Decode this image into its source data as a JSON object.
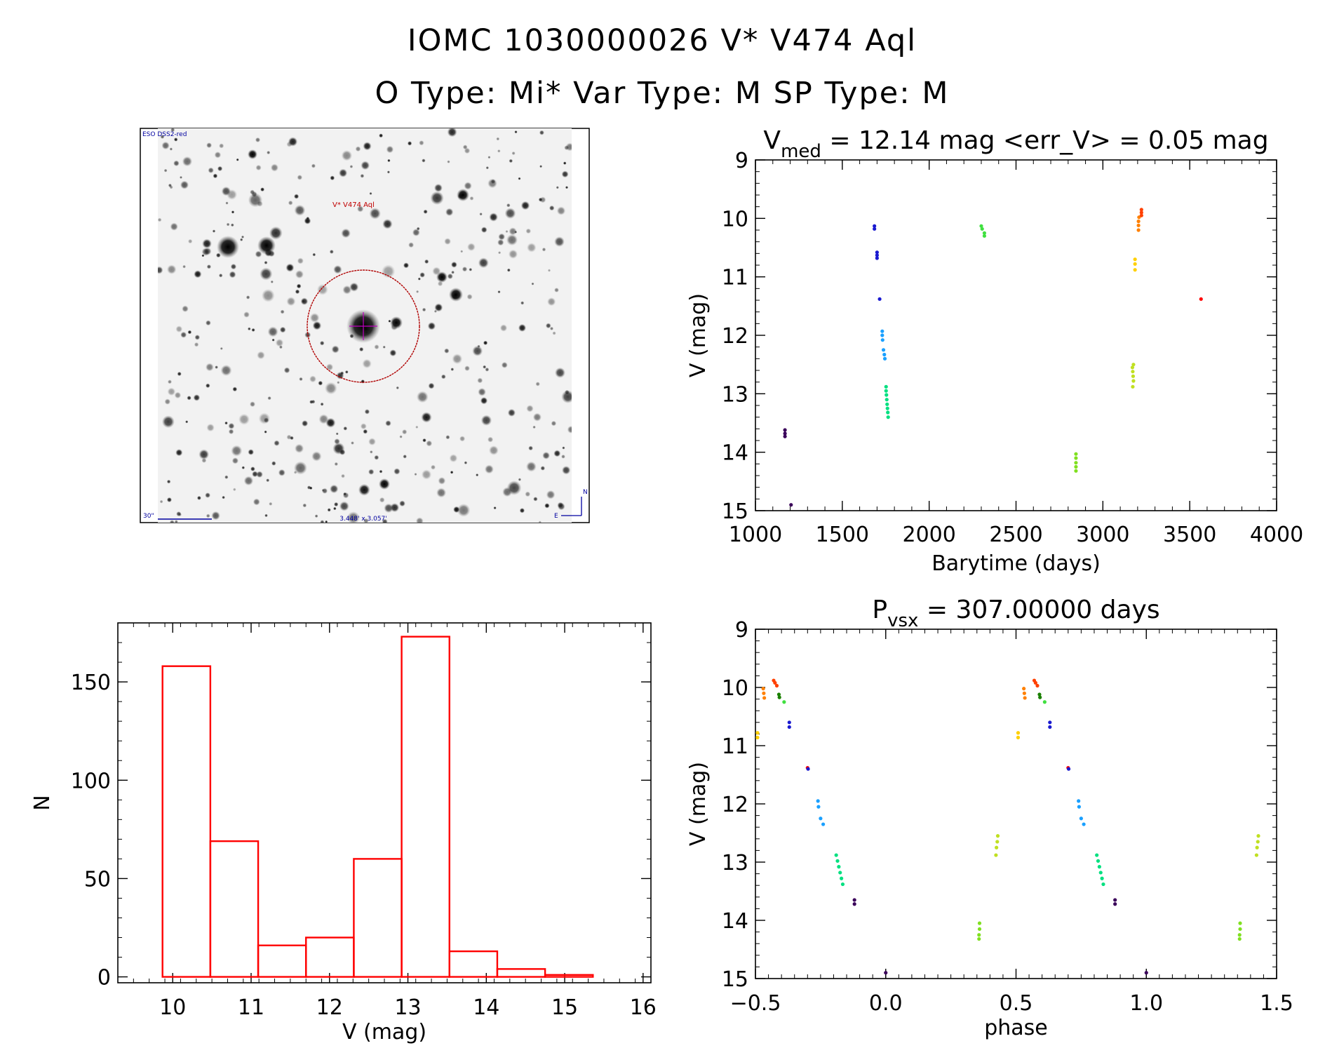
{
  "header": {
    "title": "IOMC 1030000026   V* V474 Aql",
    "subtitle": "O Type: Mi*  Var Type: M  SP Type: M"
  },
  "sky_image": {
    "source_label": "ESO DSS2-red",
    "target_label": "V* V474 Aql",
    "scale_label": "30\"",
    "fov_label": "3.448' x 3.057'",
    "north_label": "N",
    "east_label": "E"
  },
  "colors": {
    "hist_bar": "#ff0000",
    "axis": "#000000",
    "circle": "#b00000"
  },
  "chart_data": [
    {
      "id": "lightcurve",
      "type": "scatter",
      "title": "V_med = 12.14 mag <err_V> = 0.05 mag",
      "title_parts": {
        "prefix": "V",
        "sub": "med",
        "rest": " = 12.14 mag <err_V> = 0.05 mag"
      },
      "xlabel": "Barytime (days)",
      "ylabel": "V (mag)",
      "xlim": [
        1000,
        4000
      ],
      "ylim": [
        15,
        9
      ],
      "xticks": [
        "1000",
        "1500",
        "2000",
        "2500",
        "3000",
        "3500",
        "4000"
      ],
      "yticks": [
        "9",
        "10",
        "11",
        "12",
        "13",
        "14",
        "15"
      ],
      "points": [
        {
          "x": 1170,
          "y": 13.62,
          "c": "#3a005a"
        },
        {
          "x": 1170,
          "y": 13.68,
          "c": "#3a005a"
        },
        {
          "x": 1170,
          "y": 13.73,
          "c": "#3a005a"
        },
        {
          "x": 1205,
          "y": 14.9,
          "c": "#3a005a"
        },
        {
          "x": 1685,
          "y": 10.13,
          "c": "#1a1ad0"
        },
        {
          "x": 1685,
          "y": 10.18,
          "c": "#1a1ad0"
        },
        {
          "x": 1700,
          "y": 10.58,
          "c": "#1a1ad0"
        },
        {
          "x": 1700,
          "y": 10.63,
          "c": "#1a1ad0"
        },
        {
          "x": 1700,
          "y": 10.68,
          "c": "#1a1ad0"
        },
        {
          "x": 1715,
          "y": 11.38,
          "c": "#1a1ad0"
        },
        {
          "x": 1730,
          "y": 11.93,
          "c": "#1aa0ff"
        },
        {
          "x": 1730,
          "y": 12.0,
          "c": "#1aa0ff"
        },
        {
          "x": 1732,
          "y": 12.08,
          "c": "#1aa0ff"
        },
        {
          "x": 1737,
          "y": 12.25,
          "c": "#1aa0ff"
        },
        {
          "x": 1742,
          "y": 12.33,
          "c": "#1aa0ff"
        },
        {
          "x": 1745,
          "y": 12.4,
          "c": "#1aa0ff"
        },
        {
          "x": 1752,
          "y": 12.88,
          "c": "#00e080"
        },
        {
          "x": 1752,
          "y": 12.95,
          "c": "#00e080"
        },
        {
          "x": 1754,
          "y": 13.02,
          "c": "#00e080"
        },
        {
          "x": 1756,
          "y": 13.1,
          "c": "#00e080"
        },
        {
          "x": 1758,
          "y": 13.18,
          "c": "#00e080"
        },
        {
          "x": 1760,
          "y": 13.25,
          "c": "#00e080"
        },
        {
          "x": 1762,
          "y": 13.32,
          "c": "#00e080"
        },
        {
          "x": 1764,
          "y": 13.4,
          "c": "#00e080"
        },
        {
          "x": 2300,
          "y": 10.13,
          "c": "#40e040"
        },
        {
          "x": 2305,
          "y": 10.18,
          "c": "#40e040"
        },
        {
          "x": 2318,
          "y": 10.25,
          "c": "#40e040"
        },
        {
          "x": 2318,
          "y": 10.3,
          "c": "#40e040"
        },
        {
          "x": 2845,
          "y": 14.03,
          "c": "#80e020"
        },
        {
          "x": 2845,
          "y": 14.1,
          "c": "#80e020"
        },
        {
          "x": 2845,
          "y": 14.18,
          "c": "#80e020"
        },
        {
          "x": 2845,
          "y": 14.25,
          "c": "#80e020"
        },
        {
          "x": 2845,
          "y": 14.32,
          "c": "#80e020"
        },
        {
          "x": 3170,
          "y": 12.55,
          "c": "#c0e020"
        },
        {
          "x": 3172,
          "y": 12.62,
          "c": "#c0e020"
        },
        {
          "x": 3174,
          "y": 12.7,
          "c": "#c0e020"
        },
        {
          "x": 3176,
          "y": 12.78,
          "c": "#c0e020"
        },
        {
          "x": 3172,
          "y": 12.88,
          "c": "#c0e020"
        },
        {
          "x": 3176,
          "y": 12.5,
          "c": "#c0e020"
        },
        {
          "x": 3185,
          "y": 10.7,
          "c": "#ffd000"
        },
        {
          "x": 3185,
          "y": 10.78,
          "c": "#ffd000"
        },
        {
          "x": 3185,
          "y": 10.88,
          "c": "#ffd000"
        },
        {
          "x": 3205,
          "y": 10.05,
          "c": "#ff8000"
        },
        {
          "x": 3205,
          "y": 10.12,
          "c": "#ff8000"
        },
        {
          "x": 3205,
          "y": 10.2,
          "c": "#ff8000"
        },
        {
          "x": 3208,
          "y": 9.98,
          "c": "#ff8000"
        },
        {
          "x": 3222,
          "y": 9.85,
          "c": "#ff4000"
        },
        {
          "x": 3222,
          "y": 9.9,
          "c": "#ff4000"
        },
        {
          "x": 3222,
          "y": 9.95,
          "c": "#ff4000"
        },
        {
          "x": 3565,
          "y": 11.38,
          "c": "#ff0000"
        }
      ]
    },
    {
      "id": "histogram",
      "type": "bar",
      "title": "",
      "xlabel": "V (mag)",
      "ylabel": "N",
      "xlim": [
        9.3,
        16.1
      ],
      "ylim": [
        -3,
        180
      ],
      "xticks": [
        "10",
        "11",
        "12",
        "13",
        "14",
        "15",
        "16"
      ],
      "yticks": [
        "0",
        "50",
        "100",
        "150"
      ],
      "bin_edges": [
        9.87,
        10.48,
        11.09,
        11.7,
        12.31,
        12.92,
        13.53,
        14.14,
        14.75,
        15.36
      ],
      "values": [
        158,
        69,
        16,
        20,
        60,
        173,
        13,
        4,
        1
      ]
    },
    {
      "id": "phased",
      "type": "scatter",
      "title": "P_vsx = 307.00000 days",
      "title_parts": {
        "prefix": "P",
        "sub": "vsx",
        "rest": " = 307.00000 days"
      },
      "xlabel": "phase",
      "ylabel": "V (mag)",
      "xlim": [
        -0.5,
        1.5
      ],
      "ylim": [
        15,
        9
      ],
      "xticks": [
        "−0.5",
        "0.0",
        "0.5",
        "1.0",
        "1.5"
      ],
      "yticks": [
        "9",
        "10",
        "11",
        "12",
        "13",
        "14",
        "15"
      ],
      "points": [
        {
          "x": -0.492,
          "y": 10.78,
          "c": "#ffd000"
        },
        {
          "x": -0.492,
          "y": 10.86,
          "c": "#ffd000"
        },
        {
          "x": -0.47,
          "y": 10.02,
          "c": "#ff8000"
        },
        {
          "x": -0.468,
          "y": 10.1,
          "c": "#ff8000"
        },
        {
          "x": -0.466,
          "y": 10.18,
          "c": "#ff8000"
        },
        {
          "x": -0.43,
          "y": 9.88,
          "c": "#ff4000"
        },
        {
          "x": -0.425,
          "y": 9.92,
          "c": "#ff4000"
        },
        {
          "x": -0.418,
          "y": 9.97,
          "c": "#ff4000"
        },
        {
          "x": -0.41,
          "y": 10.12,
          "c": "#1a8000"
        },
        {
          "x": -0.408,
          "y": 10.17,
          "c": "#1a8000"
        },
        {
          "x": -0.39,
          "y": 10.25,
          "c": "#40e040"
        },
        {
          "x": -0.37,
          "y": 10.6,
          "c": "#1a1ad0"
        },
        {
          "x": -0.37,
          "y": 10.68,
          "c": "#1a1ad0"
        },
        {
          "x": -0.3,
          "y": 11.38,
          "c": "#ff0000"
        },
        {
          "x": -0.298,
          "y": 11.4,
          "c": "#1a1ad0"
        },
        {
          "x": -0.26,
          "y": 11.95,
          "c": "#1aa0ff"
        },
        {
          "x": -0.258,
          "y": 12.05,
          "c": "#1aa0ff"
        },
        {
          "x": -0.25,
          "y": 12.25,
          "c": "#1aa0ff"
        },
        {
          "x": -0.24,
          "y": 12.35,
          "c": "#1aa0ff"
        },
        {
          "x": -0.19,
          "y": 12.88,
          "c": "#00e080"
        },
        {
          "x": -0.185,
          "y": 12.98,
          "c": "#00e080"
        },
        {
          "x": -0.18,
          "y": 13.08,
          "c": "#00e080"
        },
        {
          "x": -0.175,
          "y": 13.18,
          "c": "#00e080"
        },
        {
          "x": -0.17,
          "y": 13.28,
          "c": "#00e080"
        },
        {
          "x": -0.165,
          "y": 13.38,
          "c": "#00e080"
        },
        {
          "x": -0.12,
          "y": 13.65,
          "c": "#3a005a"
        },
        {
          "x": -0.12,
          "y": 13.72,
          "c": "#3a005a"
        },
        {
          "x": 0.0,
          "y": 14.9,
          "c": "#3a005a"
        },
        {
          "x": 0.36,
          "y": 14.05,
          "c": "#80e020"
        },
        {
          "x": 0.36,
          "y": 14.15,
          "c": "#80e020"
        },
        {
          "x": 0.358,
          "y": 14.25,
          "c": "#80e020"
        },
        {
          "x": 0.358,
          "y": 14.32,
          "c": "#80e020"
        },
        {
          "x": 0.43,
          "y": 12.55,
          "c": "#c0e020"
        },
        {
          "x": 0.428,
          "y": 12.65,
          "c": "#c0e020"
        },
        {
          "x": 0.425,
          "y": 12.75,
          "c": "#c0e020"
        },
        {
          "x": 0.423,
          "y": 12.88,
          "c": "#c0e020"
        },
        {
          "x": 0.508,
          "y": 10.78,
          "c": "#ffd000"
        },
        {
          "x": 0.508,
          "y": 10.86,
          "c": "#ffd000"
        },
        {
          "x": 0.53,
          "y": 10.02,
          "c": "#ff8000"
        },
        {
          "x": 0.532,
          "y": 10.1,
          "c": "#ff8000"
        },
        {
          "x": 0.534,
          "y": 10.18,
          "c": "#ff8000"
        },
        {
          "x": 0.57,
          "y": 9.88,
          "c": "#ff4000"
        },
        {
          "x": 0.575,
          "y": 9.92,
          "c": "#ff4000"
        },
        {
          "x": 0.582,
          "y": 9.97,
          "c": "#ff4000"
        },
        {
          "x": 0.59,
          "y": 10.12,
          "c": "#1a8000"
        },
        {
          "x": 0.592,
          "y": 10.17,
          "c": "#1a8000"
        },
        {
          "x": 0.61,
          "y": 10.25,
          "c": "#40e040"
        },
        {
          "x": 0.63,
          "y": 10.6,
          "c": "#1a1ad0"
        },
        {
          "x": 0.63,
          "y": 10.68,
          "c": "#1a1ad0"
        },
        {
          "x": 0.7,
          "y": 11.38,
          "c": "#ff0000"
        },
        {
          "x": 0.702,
          "y": 11.4,
          "c": "#1a1ad0"
        },
        {
          "x": 0.74,
          "y": 11.95,
          "c": "#1aa0ff"
        },
        {
          "x": 0.742,
          "y": 12.05,
          "c": "#1aa0ff"
        },
        {
          "x": 0.75,
          "y": 12.25,
          "c": "#1aa0ff"
        },
        {
          "x": 0.76,
          "y": 12.35,
          "c": "#1aa0ff"
        },
        {
          "x": 0.81,
          "y": 12.88,
          "c": "#00e080"
        },
        {
          "x": 0.815,
          "y": 12.98,
          "c": "#00e080"
        },
        {
          "x": 0.82,
          "y": 13.08,
          "c": "#00e080"
        },
        {
          "x": 0.825,
          "y": 13.18,
          "c": "#00e080"
        },
        {
          "x": 0.83,
          "y": 13.28,
          "c": "#00e080"
        },
        {
          "x": 0.835,
          "y": 13.38,
          "c": "#00e080"
        },
        {
          "x": 0.88,
          "y": 13.65,
          "c": "#3a005a"
        },
        {
          "x": 0.88,
          "y": 13.72,
          "c": "#3a005a"
        },
        {
          "x": 1.0,
          "y": 14.9,
          "c": "#3a005a"
        },
        {
          "x": 1.36,
          "y": 14.05,
          "c": "#80e020"
        },
        {
          "x": 1.36,
          "y": 14.15,
          "c": "#80e020"
        },
        {
          "x": 1.358,
          "y": 14.25,
          "c": "#80e020"
        },
        {
          "x": 1.358,
          "y": 14.32,
          "c": "#80e020"
        },
        {
          "x": 1.43,
          "y": 12.55,
          "c": "#c0e020"
        },
        {
          "x": 1.428,
          "y": 12.65,
          "c": "#c0e020"
        },
        {
          "x": 1.425,
          "y": 12.75,
          "c": "#c0e020"
        },
        {
          "x": 1.423,
          "y": 12.88,
          "c": "#c0e020"
        }
      ]
    }
  ]
}
